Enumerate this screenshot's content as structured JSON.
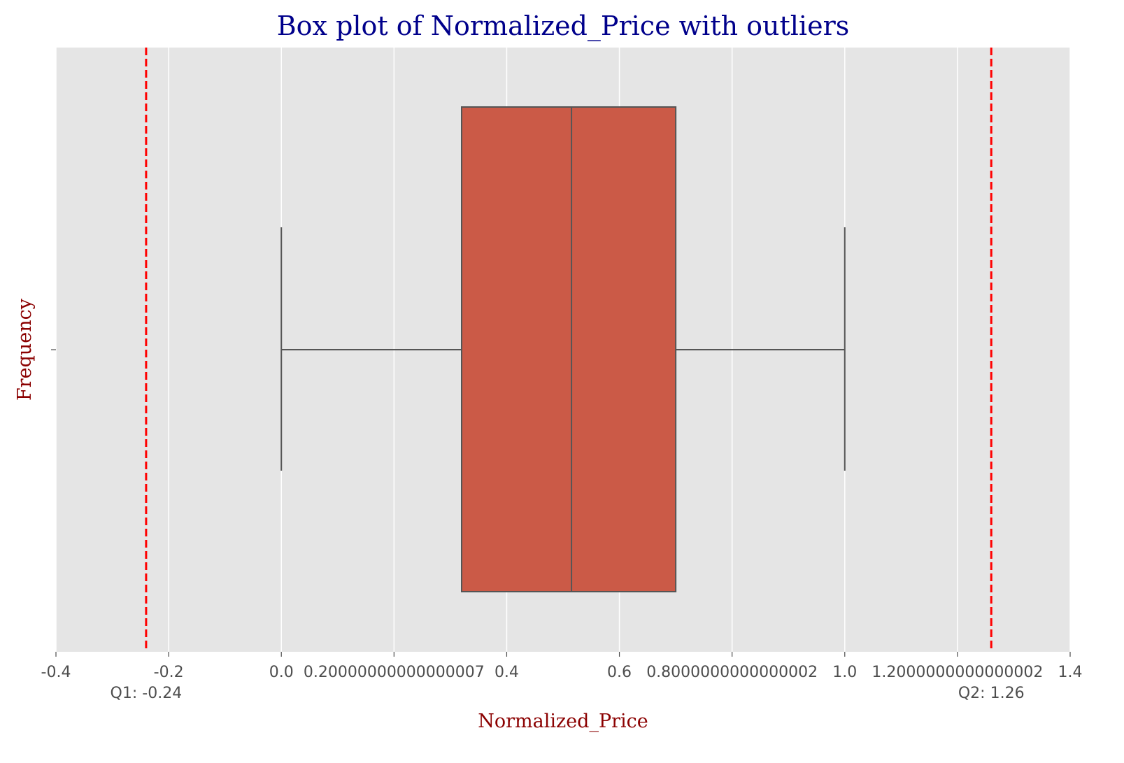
{
  "chart_data": {
    "type": "box",
    "title": "Box plot of Normalized_Price with outliers",
    "xlabel": "Normalized_Price",
    "ylabel": "Frequency",
    "xlim": [
      -0.4,
      1.4
    ],
    "grid": true,
    "x_ticks": [
      {
        "value": -0.4,
        "label": "-0.4"
      },
      {
        "value": -0.2,
        "label": "-0.2"
      },
      {
        "value": 0.0,
        "label": "0.0"
      },
      {
        "value": 0.2,
        "label": "0.20000000000000007"
      },
      {
        "value": 0.4,
        "label": "0.4"
      },
      {
        "value": 0.6,
        "label": "0.6"
      },
      {
        "value": 0.8,
        "label": "0.8000000000000002"
      },
      {
        "value": 1.0,
        "label": "1.0"
      },
      {
        "value": 1.2,
        "label": "1.2000000000000002"
      },
      {
        "value": 1.4,
        "label": "1.4"
      }
    ],
    "y_ticks": [
      {
        "label": ""
      }
    ],
    "box": {
      "whisker_low": 0.0,
      "q1": 0.32,
      "median": 0.515,
      "q3": 0.7,
      "whisker_high": 1.0,
      "color": "#cb5a47",
      "line_color": "#555555"
    },
    "reference_lines": [
      {
        "value": -0.24,
        "label": "Q1: -0.24",
        "color": "#ff0000",
        "style": "dashed"
      },
      {
        "value": 1.26,
        "label": "Q2: 1.26",
        "color": "#ff0000",
        "style": "dashed"
      }
    ],
    "colors": {
      "plot_background": "#e5e5e5",
      "grid": "#ffffff"
    }
  }
}
